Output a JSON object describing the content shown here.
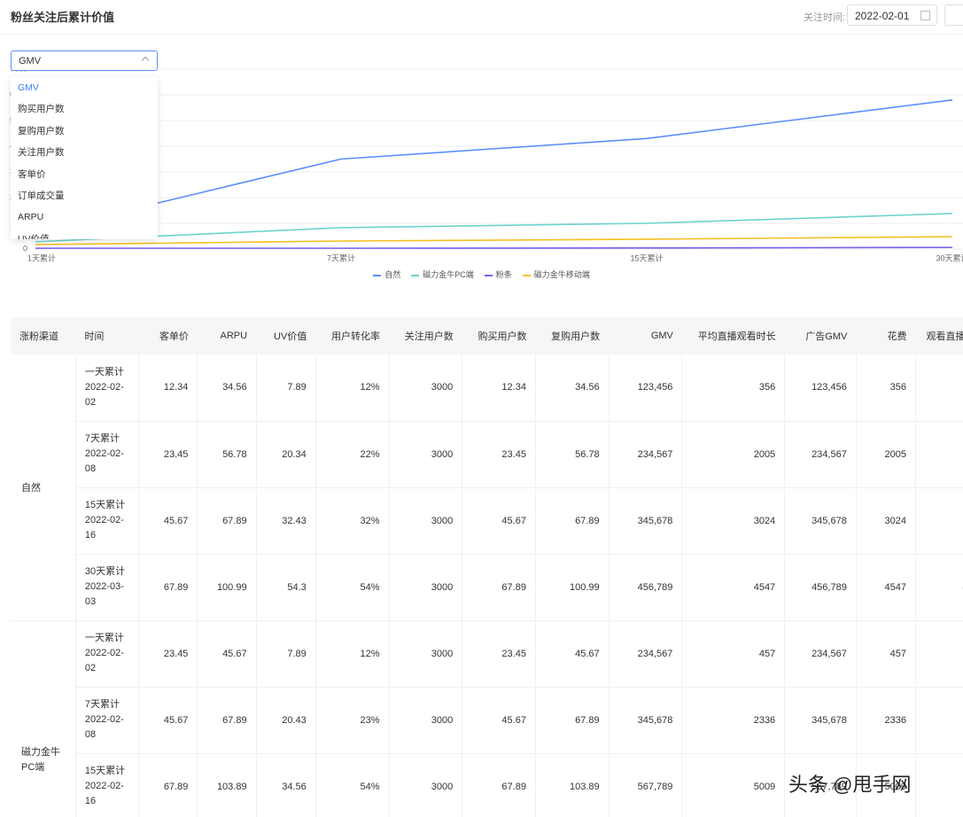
{
  "header": {
    "title": "粉丝关注后累计价值",
    "date_label": "关注时间:",
    "date_value": "2022-02-01"
  },
  "dropdown": {
    "selected": "GMV",
    "options": [
      "GMV",
      "购买用户数",
      "复购用户数",
      "关注用户数",
      "客单价",
      "订单成交量",
      "ARPU",
      "UV价值"
    ]
  },
  "chart_data": {
    "type": "line",
    "categories": [
      "1天累计",
      "7天累计",
      "15天累计",
      "30天累计"
    ],
    "ylim": [
      0,
      7000
    ],
    "yticks": [
      0,
      1000,
      2000,
      3000,
      4000,
      5000,
      6000,
      7000
    ],
    "grid": true,
    "series": [
      {
        "name": "自然",
        "color": "#5b8ff9",
        "values": [
          650,
          3500,
          4300,
          5800
        ]
      },
      {
        "name": "磁力金牛PC端",
        "color": "#6dd3ce",
        "values": [
          280,
          830,
          1000,
          1380
        ]
      },
      {
        "name": "粉条",
        "color": "#7b5cf0",
        "values": [
          30,
          30,
          40,
          60
        ]
      },
      {
        "name": "磁力金牛移动端",
        "color": "#f6c022",
        "values": [
          170,
          310,
          380,
          480
        ]
      }
    ]
  },
  "table": {
    "columns": [
      "涨粉渠道",
      "时间",
      "客单价",
      "ARPU",
      "UV价值",
      "用户转化率",
      "关注用户数",
      "购买用户数",
      "复购用户数",
      "GMV",
      "平均直播观看时长",
      "广告GMV",
      "花费",
      "观看直播次数"
    ],
    "groups": [
      {
        "channel": "自然",
        "rows": [
          {
            "period": "一天累计",
            "date": "2022-02-02",
            "cells": [
              "12.34",
              "34.56",
              "7.89",
              "12%",
              "3000",
              "12.34",
              "34.56",
              "123,456",
              "356",
              "123,456",
              "356",
              "356"
            ]
          },
          {
            "period": "7天累计",
            "date": "2022-02-08",
            "cells": [
              "23.45",
              "56.78",
              "20.34",
              "22%",
              "3000",
              "23.45",
              "56.78",
              "234,567",
              "2005",
              "234,567",
              "2005",
              "2005"
            ]
          },
          {
            "period": "15天累计",
            "date": "2022-02-16",
            "cells": [
              "45.67",
              "67.89",
              "32.43",
              "32%",
              "3000",
              "45.67",
              "67.89",
              "345,678",
              "3024",
              "345,678",
              "3024",
              "3024"
            ]
          },
          {
            "period": "30天累计",
            "date": "2022-03-03",
            "cells": [
              "67.89",
              "100.99",
              "54.3",
              "54%",
              "3000",
              "67.89",
              "100.99",
              "456,789",
              "4547",
              "456,789",
              "4547",
              "4547"
            ]
          }
        ]
      },
      {
        "channel": "磁力金牛PC端",
        "rows": [
          {
            "period": "一天累计",
            "date": "2022-02-02",
            "cells": [
              "23.45",
              "45.67",
              "7.89",
              "12%",
              "3000",
              "23.45",
              "45.67",
              "234,567",
              "457",
              "234,567",
              "457",
              "457"
            ]
          },
          {
            "period": "7天累计",
            "date": "2022-02-08",
            "cells": [
              "45.67",
              "67.89",
              "20.43",
              "23%",
              "3000",
              "45.67",
              "67.89",
              "345,678",
              "2336",
              "345,678",
              "2336",
              "2336"
            ]
          },
          {
            "period": "15天累计",
            "date": "2022-02-16",
            "cells": [
              "67.89",
              "103.89",
              "34.56",
              "54%",
              "3000",
              "67.89",
              "103.89",
              "567,789",
              "5009",
              "567,789",
              "5009",
              "5009"
            ]
          }
        ]
      }
    ]
  },
  "watermark": "头条 @甩手网"
}
